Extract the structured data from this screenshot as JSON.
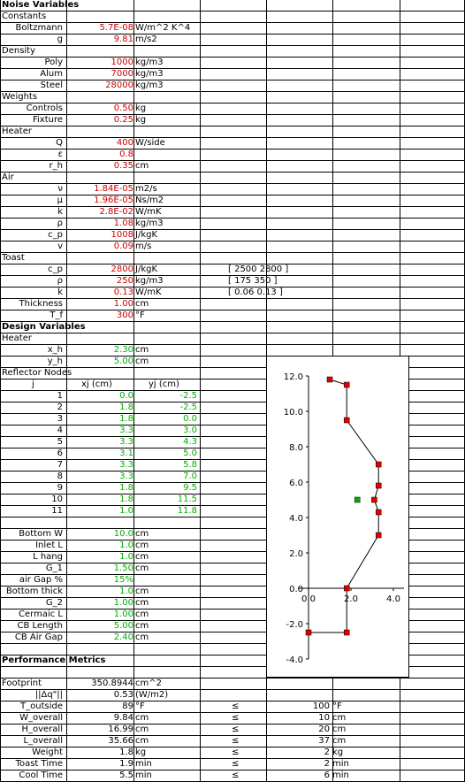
{
  "sections": {
    "noise": "Noise Variables",
    "constants": "Constants",
    "density": "Density",
    "weights": "Weights",
    "heater": "Heater",
    "air": "Air",
    "toast": "Toast",
    "design": "Design Variables",
    "heater2": "Heater",
    "reflector": "Reflector Nodes",
    "performance": "Performance Metrics"
  },
  "constants": [
    {
      "label": "Boltzmann",
      "value": "5.7E-08",
      "unit": "W/m^2 K^4"
    },
    {
      "label": "g",
      "value": "9.81",
      "unit": "m/s2"
    }
  ],
  "density": [
    {
      "label": "Poly",
      "value": "1000",
      "unit": "kg/m3"
    },
    {
      "label": "Alum",
      "value": "7000",
      "unit": "kg/m3"
    },
    {
      "label": "Steel",
      "value": "28000",
      "unit": "kg/m3"
    }
  ],
  "weights": [
    {
      "label": "Controls",
      "value": "0.50",
      "unit": "kg"
    },
    {
      "label": "Fixture",
      "value": "0.25",
      "unit": "kg"
    }
  ],
  "heater": [
    {
      "label": "Q",
      "value": "400",
      "unit": "W/side"
    },
    {
      "label": "ε",
      "value": "0.8",
      "unit": ""
    },
    {
      "label": "r_h",
      "value": "0.35",
      "unit": "cm"
    }
  ],
  "air": [
    {
      "label": "ν",
      "value": "1.84E-05",
      "unit": "m2/s"
    },
    {
      "label": "μ",
      "value": "1.96E-05",
      "unit": "Ns/m2"
    },
    {
      "label": "k",
      "value": "2.8E-02",
      "unit": "W/mK"
    },
    {
      "label": "ρ",
      "value": "1.08",
      "unit": "kg/m3"
    },
    {
      "label": "c_p",
      "value": "1008",
      "unit": "J/kgK"
    },
    {
      "label": "v",
      "value": "0.09",
      "unit": "m/s"
    }
  ],
  "toast": [
    {
      "label": "c_p",
      "value": "2800",
      "unit": "J/kgK",
      "range": "[ 2500  2800 ]"
    },
    {
      "label": "ρ",
      "value": "250",
      "unit": "kg/m3",
      "range": "[ 175  350 ]"
    },
    {
      "label": "k",
      "value": "0.13",
      "unit": "W/mK",
      "range": "[ 0.06  0.13 ]"
    },
    {
      "label": "Thickness",
      "value": "1.00",
      "unit": "cm",
      "range": ""
    },
    {
      "label": "T_f",
      "value": "300",
      "unit": "°F",
      "range": ""
    }
  ],
  "heater_design": [
    {
      "label": "x_h",
      "value": "2.30",
      "unit": "cm"
    },
    {
      "label": "y_h",
      "value": "5.00",
      "unit": "cm"
    }
  ],
  "reflector_headers": {
    "j": "j",
    "xj": "xj (cm)",
    "yj": "yj (cm)"
  },
  "reflector_nodes": [
    {
      "j": "1",
      "x": "0.0",
      "y": "-2.5"
    },
    {
      "j": "2",
      "x": "1.8",
      "y": "-2.5"
    },
    {
      "j": "3",
      "x": "1.8",
      "y": "0.0"
    },
    {
      "j": "4",
      "x": "3.3",
      "y": "3.0"
    },
    {
      "j": "5",
      "x": "3.3",
      "y": "4.3"
    },
    {
      "j": "6",
      "x": "3.1",
      "y": "5.0"
    },
    {
      "j": "7",
      "x": "3.3",
      "y": "5.8"
    },
    {
      "j": "8",
      "x": "3.3",
      "y": "7.0"
    },
    {
      "j": "9",
      "x": "1.8",
      "y": "9.5"
    },
    {
      "j": "10",
      "x": "1.8",
      "y": "11.5"
    },
    {
      "j": "11",
      "x": "1.0",
      "y": "11.8"
    }
  ],
  "design_params": [
    {
      "label": "Bottom W",
      "value": "10.0",
      "unit": "cm"
    },
    {
      "label": "Inlet L",
      "value": "1.0",
      "unit": "cm"
    },
    {
      "label": "L hang",
      "value": "1.0",
      "unit": "cm"
    },
    {
      "label": "G_1",
      "value": "1.50",
      "unit": "cm"
    },
    {
      "label": "air Gap %",
      "value": "15%",
      "unit": ""
    },
    {
      "label": "Bottom thick",
      "value": "1.0",
      "unit": "cm"
    },
    {
      "label": "G_2",
      "value": "1.00",
      "unit": "cm"
    },
    {
      "label": "Cermaic L",
      "value": "1.00",
      "unit": "cm"
    },
    {
      "label": "CB Length",
      "value": "5.00",
      "unit": "cm"
    },
    {
      "label": "CB Air Gap",
      "value": "2.40",
      "unit": "cm"
    }
  ],
  "performance": [
    {
      "label": "Footprint",
      "value": "350.8944",
      "unit": "cm^2",
      "op": "",
      "limit": "",
      "lunit": ""
    },
    {
      "label": "||Δq\"||",
      "value": "0.53",
      "unit": "(W/m2)",
      "op": "",
      "limit": "",
      "lunit": ""
    },
    {
      "label": "T_outside",
      "value": "89",
      "unit": "°F",
      "op": "≤",
      "limit": "100",
      "lunit": "°F"
    },
    {
      "label": "W_overall",
      "value": "9.84",
      "unit": "cm",
      "op": "≤",
      "limit": "10",
      "lunit": "cm"
    },
    {
      "label": "H_overall",
      "value": "16.99",
      "unit": "cm",
      "op": "≤",
      "limit": "20",
      "lunit": "cm"
    },
    {
      "label": "L_overall",
      "value": "35.66",
      "unit": "cm",
      "op": "≤",
      "limit": "37",
      "lunit": "cm"
    },
    {
      "label": "Weight",
      "value": "1.8",
      "unit": "kg",
      "op": "≤",
      "limit": "2",
      "lunit": "kg"
    },
    {
      "label": "Toast Time",
      "value": "1.9",
      "unit": "min",
      "op": "≤",
      "limit": "2",
      "lunit": "min"
    },
    {
      "label": "Cool Time",
      "value": "5.5",
      "unit": "min",
      "op": "≤",
      "limit": "6",
      "lunit": "min"
    }
  ],
  "chart_data": {
    "type": "scatter",
    "series": [
      {
        "values_x": [
          0.0,
          1.8,
          1.8,
          3.3,
          3.3,
          3.1,
          3.3,
          3.3,
          1.8,
          1.8,
          1.0
        ],
        "values_y": [
          -2.5,
          -2.5,
          0.0,
          3.0,
          4.3,
          5.0,
          5.8,
          7.0,
          9.5,
          11.5,
          11.8
        ],
        "color": "#e00000",
        "connected": true
      },
      {
        "values_x": [
          2.3
        ],
        "values_y": [
          5.0
        ],
        "color": "#00b000",
        "connected": false
      }
    ],
    "xlim": [
      -0.5,
      4.5
    ],
    "ylim": [
      -4.0,
      12.0
    ],
    "xticks": [
      "0.0",
      "2.0",
      "4.0"
    ],
    "yticks": [
      "12.0",
      "10.0",
      "8.0",
      "6.0",
      "4.0",
      "2.0",
      "0.0",
      "-2.0",
      "-4.0"
    ]
  }
}
